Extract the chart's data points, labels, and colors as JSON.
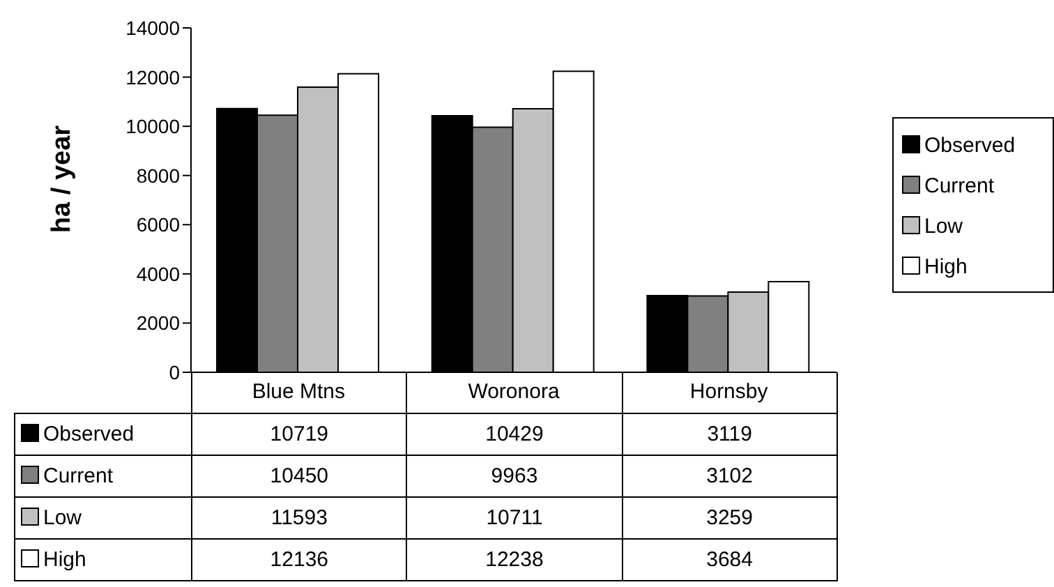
{
  "chart_data": {
    "type": "bar",
    "ylabel": "ha / year",
    "categories": [
      "Blue Mtns",
      "Woronora",
      "Hornsby"
    ],
    "series": [
      {
        "name": "Observed",
        "color": "#000000",
        "values": [
          10719,
          10429,
          3119
        ]
      },
      {
        "name": "Current",
        "color": "#808080",
        "values": [
          10450,
          9963,
          3102
        ]
      },
      {
        "name": "Low",
        "color": "#c0c0c0",
        "values": [
          11593,
          10711,
          3259
        ]
      },
      {
        "name": "High",
        "color": "#ffffff",
        "values": [
          12136,
          12238,
          3684
        ]
      }
    ],
    "ylim": [
      0,
      14000
    ],
    "yticks": [
      0,
      2000,
      4000,
      6000,
      8000,
      10000,
      12000,
      14000
    ],
    "legend": "right",
    "data_labels": true
  }
}
